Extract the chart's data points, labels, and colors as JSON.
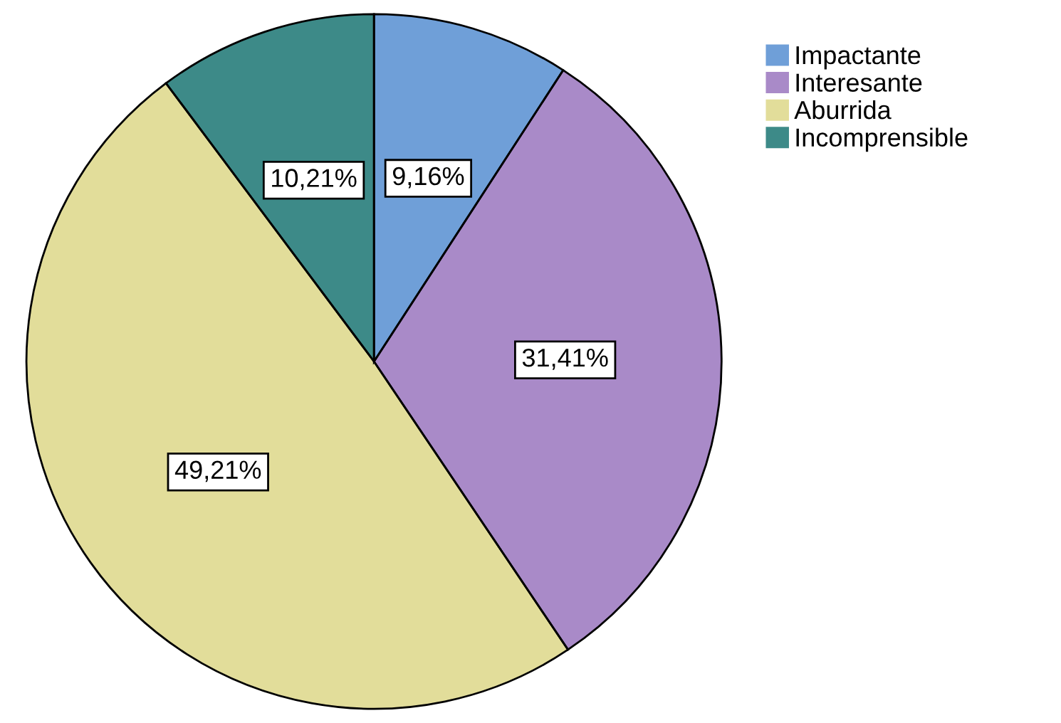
{
  "chart_data": {
    "type": "pie",
    "categories": [
      "Impactante",
      "Interesante",
      "Aburrida",
      "Incomprensible"
    ],
    "values": [
      9.16,
      31.41,
      49.21,
      10.21
    ],
    "colors": [
      "#6f9fd8",
      "#a98ac8",
      "#e2dd9a",
      "#3d8a88"
    ],
    "value_labels": [
      "9,16%",
      "31,41%",
      "49,21%",
      "10,21%"
    ],
    "legend": "top right"
  }
}
